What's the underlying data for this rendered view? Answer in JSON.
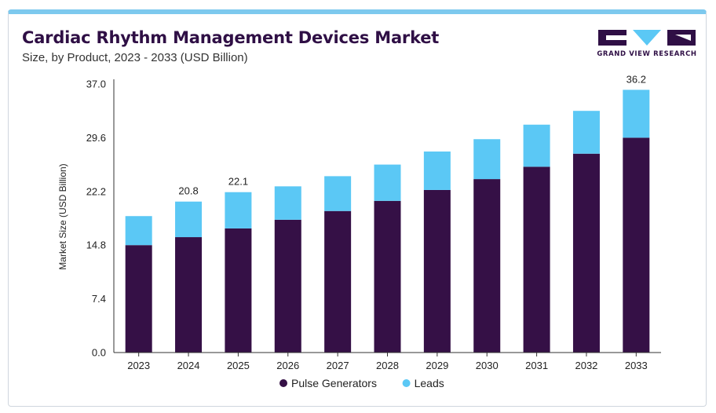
{
  "header": {
    "title": "Cardiac Rhythm Management Devices Market",
    "subtitle": "Size, by Product, 2023 - 2033 (USD Billion)",
    "logo_text": "GRAND VIEW RESEARCH"
  },
  "colors": {
    "pulse_generators": "#351046",
    "leads": "#5bc8f5",
    "accent_border": "#7dc9ee"
  },
  "chart_data": {
    "type": "bar",
    "stacked": true,
    "categories": [
      "2023",
      "2024",
      "2025",
      "2026",
      "2027",
      "2028",
      "2029",
      "2030",
      "2031",
      "2032",
      "2033"
    ],
    "series": [
      {
        "name": "Pulse Generators",
        "values": [
          14.8,
          15.9,
          17.1,
          18.3,
          19.5,
          20.9,
          22.4,
          23.9,
          25.6,
          27.4,
          29.6
        ]
      },
      {
        "name": "Leads",
        "values": [
          4.0,
          4.9,
          5.0,
          4.6,
          4.8,
          5.0,
          5.3,
          5.5,
          5.8,
          5.9,
          6.6
        ]
      }
    ],
    "data_labels": [
      {
        "category": "2024",
        "text": "20.8"
      },
      {
        "category": "2025",
        "text": "22.1"
      },
      {
        "category": "2033",
        "text": "36.2"
      }
    ],
    "ylabel": "Market Size (USD Billion)",
    "yticks": [
      "0.0",
      "7.4",
      "14.8",
      "22.2",
      "29.6",
      "37.0"
    ],
    "ylim": [
      0,
      37.0
    ],
    "grid": false,
    "legend_position": "bottom-center"
  }
}
